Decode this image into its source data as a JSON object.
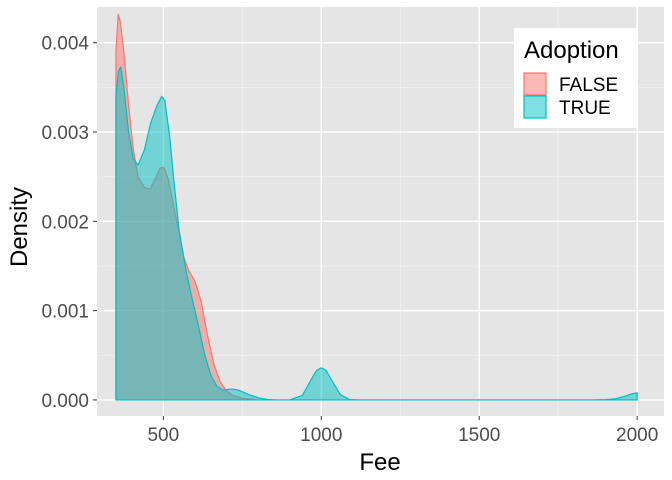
{
  "chart_data": {
    "type": "area",
    "subtype": "density",
    "title": "",
    "xlabel": "Fee",
    "ylabel": "Density",
    "xlim": [
      290,
      2085
    ],
    "ylim": [
      -0.00018,
      0.0044
    ],
    "x_ticks": [
      500,
      1000,
      1500,
      2000
    ],
    "x_tick_labels": [
      "500",
      "1000",
      "1500",
      "2000"
    ],
    "y_ticks": [
      0.0,
      0.001,
      0.002,
      0.003,
      0.004
    ],
    "y_tick_labels": [
      "0.000",
      "0.001",
      "0.002",
      "0.003",
      "0.004"
    ],
    "grid": true,
    "legend": {
      "title": "Adoption",
      "position": "top-right"
    },
    "background": "#E5E5E5",
    "series": [
      {
        "name": "FALSE",
        "color": "#F8766D",
        "points": [
          [
            350,
            0
          ],
          [
            350,
            0.0039
          ],
          [
            357,
            0.00432
          ],
          [
            363,
            0.00425
          ],
          [
            375,
            0.0039
          ],
          [
            390,
            0.0033
          ],
          [
            405,
            0.0028
          ],
          [
            420,
            0.0025
          ],
          [
            440,
            0.00238
          ],
          [
            458,
            0.00236
          ],
          [
            475,
            0.00248
          ],
          [
            490,
            0.0026
          ],
          [
            502,
            0.0026
          ],
          [
            515,
            0.00248
          ],
          [
            530,
            0.00222
          ],
          [
            550,
            0.00187
          ],
          [
            565,
            0.0016
          ],
          [
            580,
            0.00145
          ],
          [
            600,
            0.00133
          ],
          [
            620,
            0.0011
          ],
          [
            640,
            0.00072
          ],
          [
            660,
            0.0004
          ],
          [
            680,
            0.0002
          ],
          [
            700,
            0.0001
          ],
          [
            720,
            5e-05
          ],
          [
            750,
            2e-05
          ],
          [
            800,
            0.0
          ],
          [
            2000,
            0.0
          ],
          [
            2000,
            0
          ]
        ]
      },
      {
        "name": "TRUE",
        "color": "#00BFC4",
        "points": [
          [
            350,
            0
          ],
          [
            350,
            0.0034
          ],
          [
            358,
            0.00368
          ],
          [
            365,
            0.00373
          ],
          [
            375,
            0.0035
          ],
          [
            390,
            0.003
          ],
          [
            405,
            0.0027
          ],
          [
            420,
            0.00263
          ],
          [
            440,
            0.0028
          ],
          [
            460,
            0.0031
          ],
          [
            480,
            0.0033
          ],
          [
            495,
            0.0034
          ],
          [
            505,
            0.00335
          ],
          [
            520,
            0.00295
          ],
          [
            535,
            0.0024
          ],
          [
            550,
            0.0019
          ],
          [
            570,
            0.00148
          ],
          [
            590,
            0.00115
          ],
          [
            610,
            0.00085
          ],
          [
            630,
            0.00052
          ],
          [
            650,
            0.00028
          ],
          [
            670,
            0.00015
          ],
          [
            690,
            0.00011
          ],
          [
            710,
            0.00012
          ],
          [
            725,
            0.00012
          ],
          [
            745,
            0.0001
          ],
          [
            770,
            6e-05
          ],
          [
            800,
            2.5e-05
          ],
          [
            830,
            5e-06
          ],
          [
            860,
            0.0
          ],
          [
            900,
            0.0
          ],
          [
            940,
            5e-05
          ],
          [
            970,
            0.00024
          ],
          [
            985,
            0.00033
          ],
          [
            1000,
            0.00036
          ],
          [
            1015,
            0.00033
          ],
          [
            1030,
            0.00024
          ],
          [
            1060,
            6e-05
          ],
          [
            1090,
            5e-06
          ],
          [
            1120,
            0.0
          ],
          [
            1850,
            0.0
          ],
          [
            1900,
            3e-06
          ],
          [
            1930,
            1.2e-05
          ],
          [
            1960,
            4e-05
          ],
          [
            1980,
            6.5e-05
          ],
          [
            2000,
            8e-05
          ],
          [
            2000,
            0
          ]
        ]
      }
    ]
  }
}
